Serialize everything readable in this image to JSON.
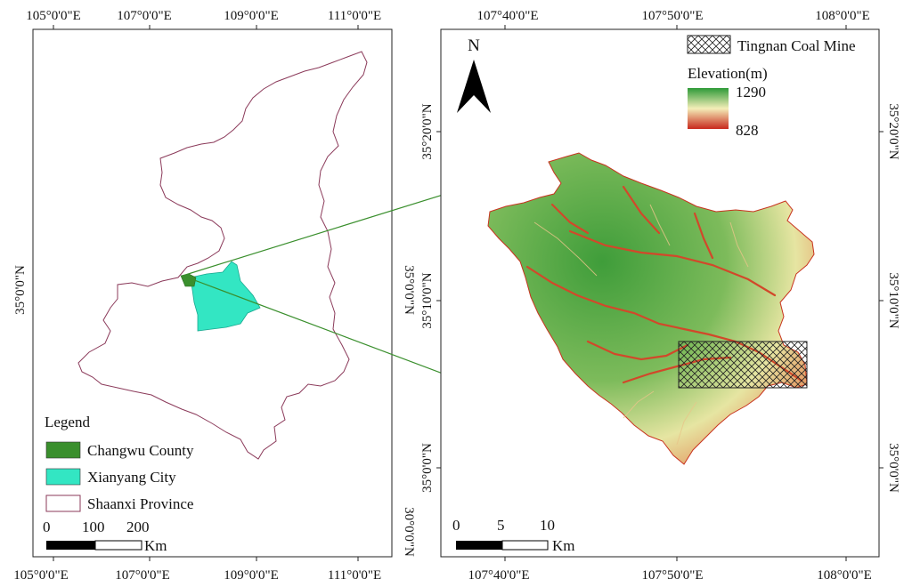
{
  "left_panel": {
    "top_ticks": [
      "105°0'0\"E",
      "107°0'0\"E",
      "109°0'0\"E",
      "111°0'0\"E"
    ],
    "bottom_ticks": [
      "105°0'0\"E",
      "107°0'0\"E",
      "109°0'0\"E",
      "111°0'0\"E"
    ],
    "left_ticks": [
      "35°0'0\"N"
    ],
    "right_ticks": [
      "35°0'0\"N",
      "30°0'0\"N"
    ],
    "legend": {
      "title": "Legend",
      "items": [
        {
          "label": "Changwu County",
          "color": "#3a8f2d"
        },
        {
          "label": "Xianyang City",
          "color": "#33e6c3"
        },
        {
          "label": "Shaanxi Province",
          "color": "#ffffff"
        }
      ]
    },
    "scale": {
      "labels": [
        "0",
        "100",
        "200"
      ],
      "unit": "Km"
    }
  },
  "right_panel": {
    "top_ticks": [
      "107°40'0\"E",
      "107°50'0\"E",
      "108°0'0\"E"
    ],
    "bottom_ticks": [
      "107°40'0\"E",
      "107°50'0\"E",
      "108°0'0\"E"
    ],
    "left_ticks": [
      "35°20'0\"N",
      "35°10'0\"N",
      "35°0'0\"N"
    ],
    "right_ticks": [
      "35°20'0\"N",
      "35°10'0\"N",
      "35°0'0\"N"
    ],
    "north_label": "N",
    "mine_label": "Tingnan Coal Mine",
    "elevation": {
      "title": "Elevation(m)",
      "max": "1290",
      "min": "828",
      "colors": [
        "#2e9a38",
        "#f4eeb8",
        "#c8281c"
      ]
    },
    "scale": {
      "labels": [
        "0",
        "5",
        "10"
      ],
      "unit": "Km"
    }
  }
}
